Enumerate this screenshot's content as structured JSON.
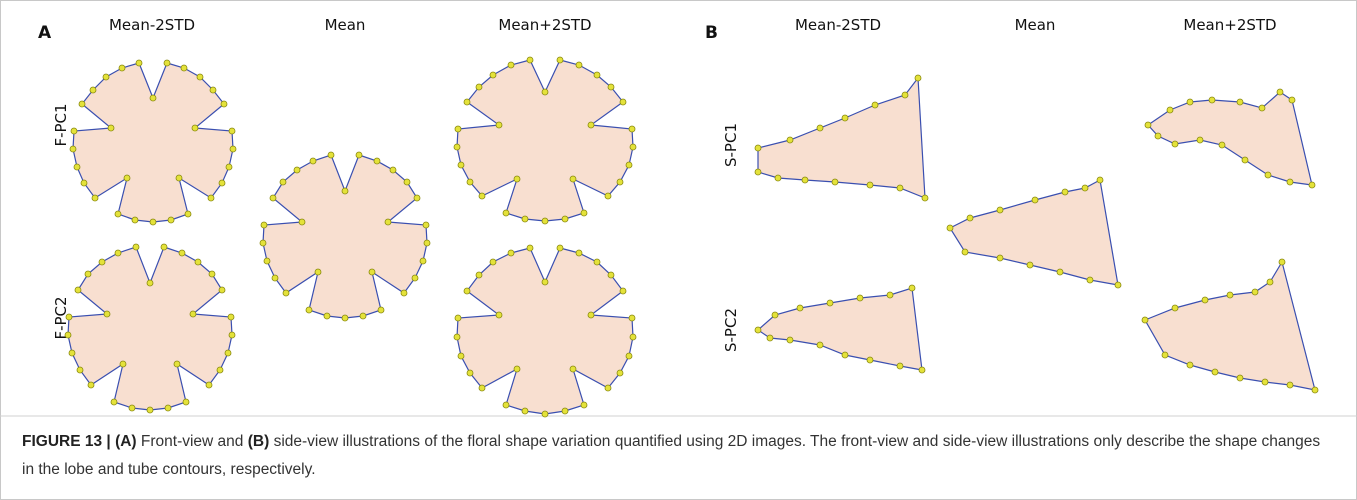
{
  "panels": [
    {
      "label": "A",
      "columns": [
        "Mean-2STD",
        "Mean",
        "Mean+2STD"
      ],
      "rows": [
        "F-PC1",
        "F-PC2"
      ]
    },
    {
      "label": "B",
      "columns": [
        "Mean-2STD",
        "Mean",
        "Mean+2STD"
      ],
      "rows": [
        "S-PC1",
        "S-PC2"
      ]
    }
  ],
  "caption": {
    "figure": "FIGURE 13 | ",
    "a": "(A)",
    "text1": " Front-view and ",
    "b": "(B)",
    "text2": " side-view illustrations of the floral shape variation quantified using 2D images. The front-view and side-view illustrations only describe the shape changes in the lobe and tube contours, respectively."
  }
}
